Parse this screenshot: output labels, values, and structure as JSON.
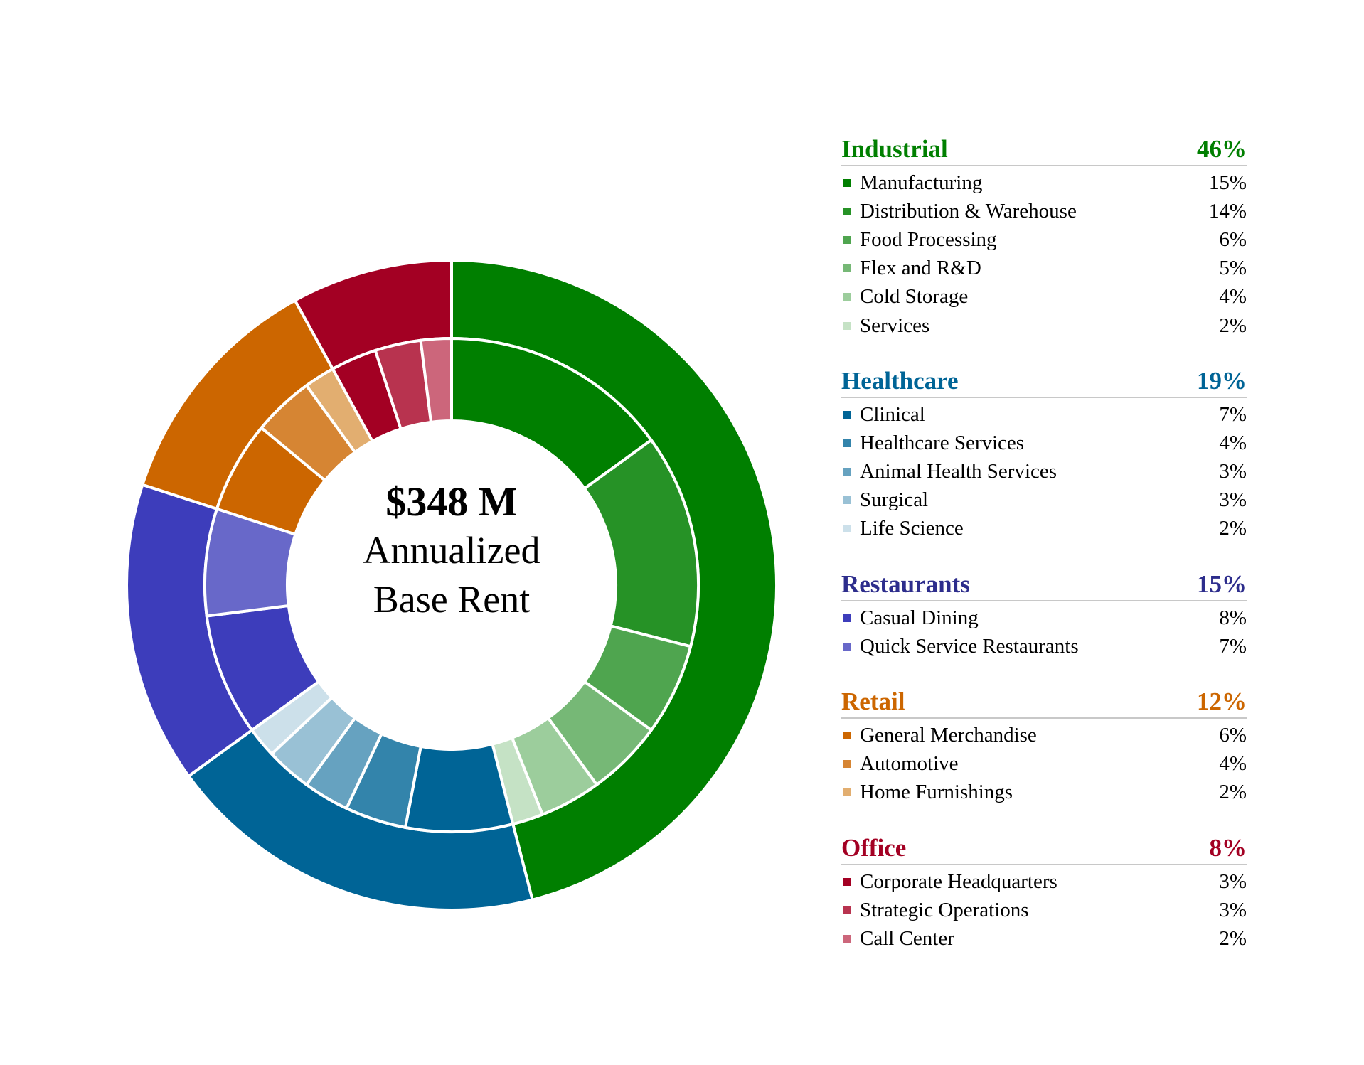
{
  "center": {
    "amount": "$348 M",
    "line1": "Annualized",
    "line2": "Base Rent"
  },
  "chart_data": {
    "type": "pie",
    "subtype": "nested-donut",
    "units": "%",
    "groups": [
      {
        "name": "Industrial",
        "value": 46,
        "display": "46%",
        "color": "#007f00",
        "items": [
          {
            "name": "Manufacturing",
            "value": 15,
            "display": "15%",
            "color": "#007f00"
          },
          {
            "name": "Distribution & Warehouse",
            "value": 14,
            "display": "14%",
            "color": "#269226"
          },
          {
            "name": "Food Processing",
            "value": 6,
            "display": "6%",
            "color": "#4fa54f"
          },
          {
            "name": "Flex and R&D",
            "value": 5,
            "display": "5%",
            "color": "#76b876"
          },
          {
            "name": "Cold Storage",
            "value": 4,
            "display": "4%",
            "color": "#9ccd9c"
          },
          {
            "name": "Services",
            "value": 2,
            "display": "2%",
            "color": "#c5e2c5"
          }
        ]
      },
      {
        "name": "Healthcare",
        "value": 19,
        "display": "19%",
        "color": "#006496",
        "items": [
          {
            "name": "Clinical",
            "value": 7,
            "display": "7%",
            "color": "#006496"
          },
          {
            "name": "Healthcare Services",
            "value": 4,
            "display": "4%",
            "color": "#3384ab"
          },
          {
            "name": "Animal Health Services",
            "value": 3,
            "display": "3%",
            "color": "#66a2c0"
          },
          {
            "name": "Surgical",
            "value": 3,
            "display": "3%",
            "color": "#99c1d5"
          },
          {
            "name": "Life Science",
            "value": 2,
            "display": "2%",
            "color": "#cce0ea"
          }
        ]
      },
      {
        "name": "Restaurants",
        "value": 15,
        "display": "15%",
        "color": "#3d3dbb",
        "header_color": "#2d2d8c",
        "items": [
          {
            "name": "Casual Dining",
            "value": 8,
            "display": "8%",
            "color": "#3d3dbb"
          },
          {
            "name": "Quick Service Restaurants",
            "value": 7,
            "display": "7%",
            "color": "#6868c9"
          }
        ]
      },
      {
        "name": "Retail",
        "value": 12,
        "display": "12%",
        "color": "#cc6600",
        "items": [
          {
            "name": "General Merchandise",
            "value": 6,
            "display": "6%",
            "color": "#cc6600"
          },
          {
            "name": "Automotive",
            "value": 4,
            "display": "4%",
            "color": "#d68533"
          },
          {
            "name": "Home Furnishings",
            "value": 2,
            "display": "2%",
            "color": "#e2ae70"
          }
        ]
      },
      {
        "name": "Office",
        "value": 8,
        "display": "8%",
        "color": "#a30023",
        "items": [
          {
            "name": "Corporate Headquarters",
            "value": 3,
            "display": "3%",
            "color": "#a30023"
          },
          {
            "name": "Strategic Operations",
            "value": 3,
            "display": "3%",
            "color": "#b8334f"
          },
          {
            "name": "Call Center",
            "value": 2,
            "display": "2%",
            "color": "#cc667b"
          }
        ]
      }
    ]
  }
}
